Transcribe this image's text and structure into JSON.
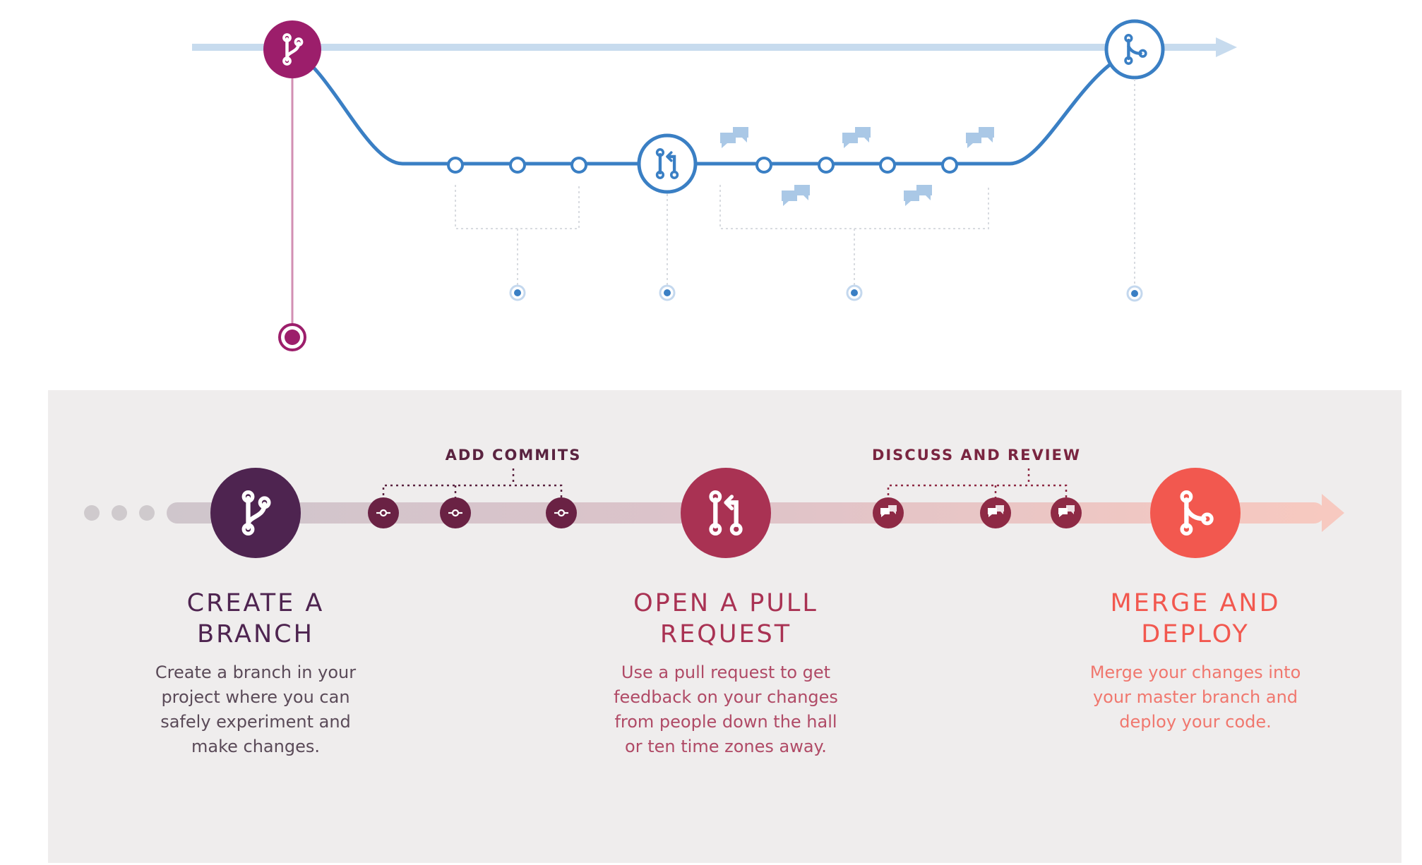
{
  "top_flow": {
    "nodes": [
      "branch-icon",
      "pull-request-icon",
      "merge-icon"
    ],
    "commit_count": 3,
    "review_commit_count": 4,
    "comment_count": 5
  },
  "timeline": {
    "labels": {
      "add_commits": "ADD COMMITS",
      "discuss_and_review": "DISCUSS AND REVIEW"
    },
    "steps": [
      {
        "id": "create-branch",
        "icon": "branch-icon",
        "color": "#4e2450",
        "title_lines": [
          "CREATE A",
          "BRANCH"
        ],
        "desc_lines": [
          "Create a branch in your",
          "project where you can",
          "safely experiment and",
          "make changes."
        ]
      },
      {
        "id": "open-pull-request",
        "icon": "pull-request-icon",
        "color": "#a93253",
        "title_lines": [
          "OPEN A PULL",
          "REQUEST"
        ],
        "desc_lines": [
          "Use a pull request to get",
          "feedback on your changes",
          "from people down the hall",
          "or ten time zones away."
        ]
      },
      {
        "id": "merge-and-deploy",
        "icon": "merge-icon",
        "color": "#f2584f",
        "title_lines": [
          "MERGE AND",
          "DEPLOY"
        ],
        "desc_lines": [
          "Merge your changes into",
          "your master branch and",
          "deploy your code."
        ]
      }
    ]
  },
  "colors": {
    "top_blue": "#3a7fc4",
    "top_blue_light": "#c7dbee",
    "branch_magenta": "#9c1e6b",
    "panel_bg": "#efeded",
    "commit_dot": "#6a2244",
    "review_dot": "#8e2a45"
  }
}
